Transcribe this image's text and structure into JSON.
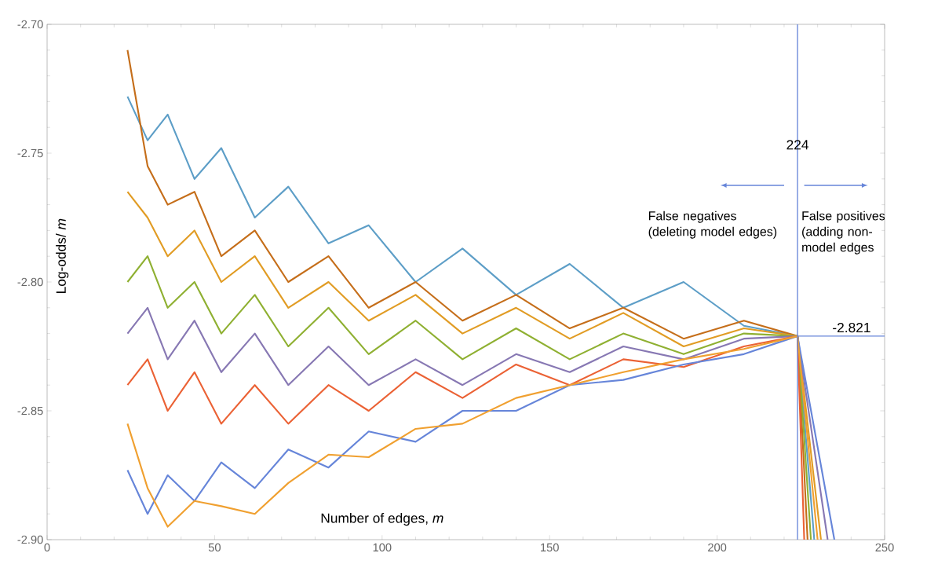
{
  "chart_data": {
    "type": "line",
    "xlabel": "Number of edges, *m*",
    "ylabel": "Log-odds/ *m*",
    "xlim": [
      0,
      250
    ],
    "ylim": [
      -2.9,
      -2.7
    ],
    "xticks": [
      0,
      50,
      100,
      150,
      200,
      250
    ],
    "yticks": [
      {
        "value": -2.9,
        "label": "-2.90"
      },
      {
        "value": -2.85,
        "label": "-2.85"
      },
      {
        "value": -2.8,
        "label": "-2.80"
      },
      {
        "value": -2.75,
        "label": "-2.75"
      },
      {
        "value": -2.7,
        "label": "-2.70"
      }
    ],
    "grid": false,
    "marker": "none",
    "line_style": "solid",
    "series": [
      {
        "color": "#5D9EC7",
        "x": [
          24,
          30,
          36,
          44,
          52,
          62,
          72,
          84,
          96,
          110,
          124,
          140,
          156,
          172,
          190,
          208,
          224,
          229
        ],
        "values": [
          -2.728,
          -2.745,
          -2.735,
          -2.76,
          -2.748,
          -2.775,
          -2.763,
          -2.785,
          -2.778,
          -2.8,
          -2.787,
          -2.805,
          -2.793,
          -2.81,
          -2.8,
          -2.817,
          -2.821,
          -2.9
        ]
      },
      {
        "color": "#C56E1A",
        "x": [
          24,
          30,
          36,
          44,
          52,
          62,
          72,
          84,
          96,
          110,
          124,
          140,
          156,
          172,
          190,
          208,
          224,
          227
        ],
        "values": [
          -2.71,
          -2.755,
          -2.77,
          -2.765,
          -2.79,
          -2.78,
          -2.8,
          -2.79,
          -2.81,
          -2.8,
          -2.815,
          -2.805,
          -2.818,
          -2.81,
          -2.822,
          -2.815,
          -2.821,
          -2.9
        ]
      },
      {
        "color": "#E19C24",
        "x": [
          24,
          30,
          36,
          44,
          52,
          62,
          72,
          84,
          96,
          110,
          124,
          140,
          156,
          172,
          190,
          208,
          224,
          231
        ],
        "values": [
          -2.765,
          -2.775,
          -2.79,
          -2.78,
          -2.8,
          -2.79,
          -2.81,
          -2.8,
          -2.815,
          -2.805,
          -2.82,
          -2.81,
          -2.822,
          -2.812,
          -2.825,
          -2.818,
          -2.821,
          -2.9
        ]
      },
      {
        "color": "#8FB032",
        "x": [
          24,
          30,
          36,
          44,
          52,
          62,
          72,
          84,
          96,
          110,
          124,
          140,
          156,
          172,
          190,
          208,
          224,
          228
        ],
        "values": [
          -2.8,
          -2.79,
          -2.81,
          -2.8,
          -2.82,
          -2.805,
          -2.825,
          -2.81,
          -2.828,
          -2.815,
          -2.83,
          -2.818,
          -2.83,
          -2.82,
          -2.828,
          -2.82,
          -2.821,
          -2.9
        ]
      },
      {
        "color": "#8778B3",
        "x": [
          24,
          30,
          36,
          44,
          52,
          62,
          72,
          84,
          96,
          110,
          124,
          140,
          156,
          172,
          190,
          208,
          224,
          233
        ],
        "values": [
          -2.82,
          -2.81,
          -2.83,
          -2.815,
          -2.835,
          -2.82,
          -2.84,
          -2.825,
          -2.84,
          -2.83,
          -2.84,
          -2.828,
          -2.835,
          -2.825,
          -2.83,
          -2.822,
          -2.821,
          -2.9
        ]
      },
      {
        "color": "#EB6235",
        "x": [
          24,
          30,
          36,
          44,
          52,
          62,
          72,
          84,
          96,
          110,
          124,
          140,
          156,
          172,
          190,
          208,
          224,
          226
        ],
        "values": [
          -2.84,
          -2.83,
          -2.85,
          -2.835,
          -2.855,
          -2.84,
          -2.855,
          -2.84,
          -2.85,
          -2.835,
          -2.845,
          -2.832,
          -2.84,
          -2.83,
          -2.833,
          -2.825,
          -2.821,
          -2.9
        ]
      },
      {
        "color": "#6685D9",
        "x": [
          24,
          30,
          36,
          44,
          52,
          62,
          72,
          84,
          96,
          110,
          124,
          140,
          156,
          172,
          190,
          208,
          224,
          235
        ],
        "values": [
          -2.873,
          -2.89,
          -2.875,
          -2.885,
          -2.87,
          -2.88,
          -2.865,
          -2.872,
          -2.858,
          -2.862,
          -2.85,
          -2.85,
          -2.84,
          -2.838,
          -2.832,
          -2.828,
          -2.821,
          -2.9
        ]
      },
      {
        "color": "#F0A030",
        "x": [
          24,
          30,
          36,
          44,
          52,
          62,
          72,
          84,
          96,
          110,
          124,
          140,
          156,
          172,
          190,
          208,
          224,
          230
        ],
        "values": [
          -2.855,
          -2.88,
          -2.895,
          -2.885,
          -2.887,
          -2.89,
          -2.878,
          -2.867,
          -2.868,
          -2.857,
          -2.855,
          -2.845,
          -2.84,
          -2.835,
          -2.83,
          -2.826,
          -2.821,
          -2.9
        ]
      }
    ],
    "ref_lines": [
      {
        "axis": "x",
        "value": 224,
        "label": "224",
        "color": "#6685D9"
      },
      {
        "axis": "y",
        "value": -2.821,
        "label": "-2.821",
        "color": "#6685D9"
      }
    ],
    "annotations": [
      "False negatives (deleting model edges)",
      "False positives (adding non-model edges"
    ]
  }
}
